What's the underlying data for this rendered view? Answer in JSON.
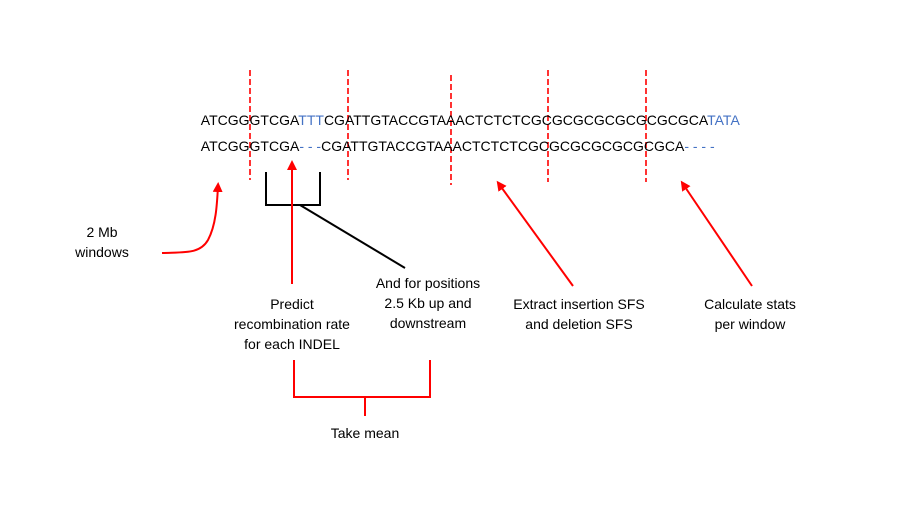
{
  "sequences": {
    "top": {
      "parts": [
        "ATCGGGTCGA",
        "TTT",
        "CGATTGTACCGTAAACTCTCTCGCGCGCGCGCGCGCGCA",
        "TATA"
      ]
    },
    "bottom": {
      "parts": [
        "ATCGGGTCGA",
        "- - -",
        "CGATTGTACCGTAAACTCTCTCGCGCGCGCGCGCGCA",
        "- - - -"
      ]
    }
  },
  "labels": {
    "windows": [
      "2 Mb",
      "windows"
    ],
    "predict": [
      "Predict",
      "recombination rate",
      "for each INDEL"
    ],
    "flanking": [
      "And for positions",
      "2.5 Kb up and",
      "downstream"
    ],
    "extract": [
      "Extract insertion SFS",
      "and deletion SFS"
    ],
    "calculate": [
      "Calculate stats",
      "per window"
    ],
    "mean": "Take mean"
  },
  "colors": {
    "arrow": "#ff0000",
    "window_boundary": "#ff0000",
    "insertion_text": "#4472c4",
    "bracket": "#000000"
  }
}
